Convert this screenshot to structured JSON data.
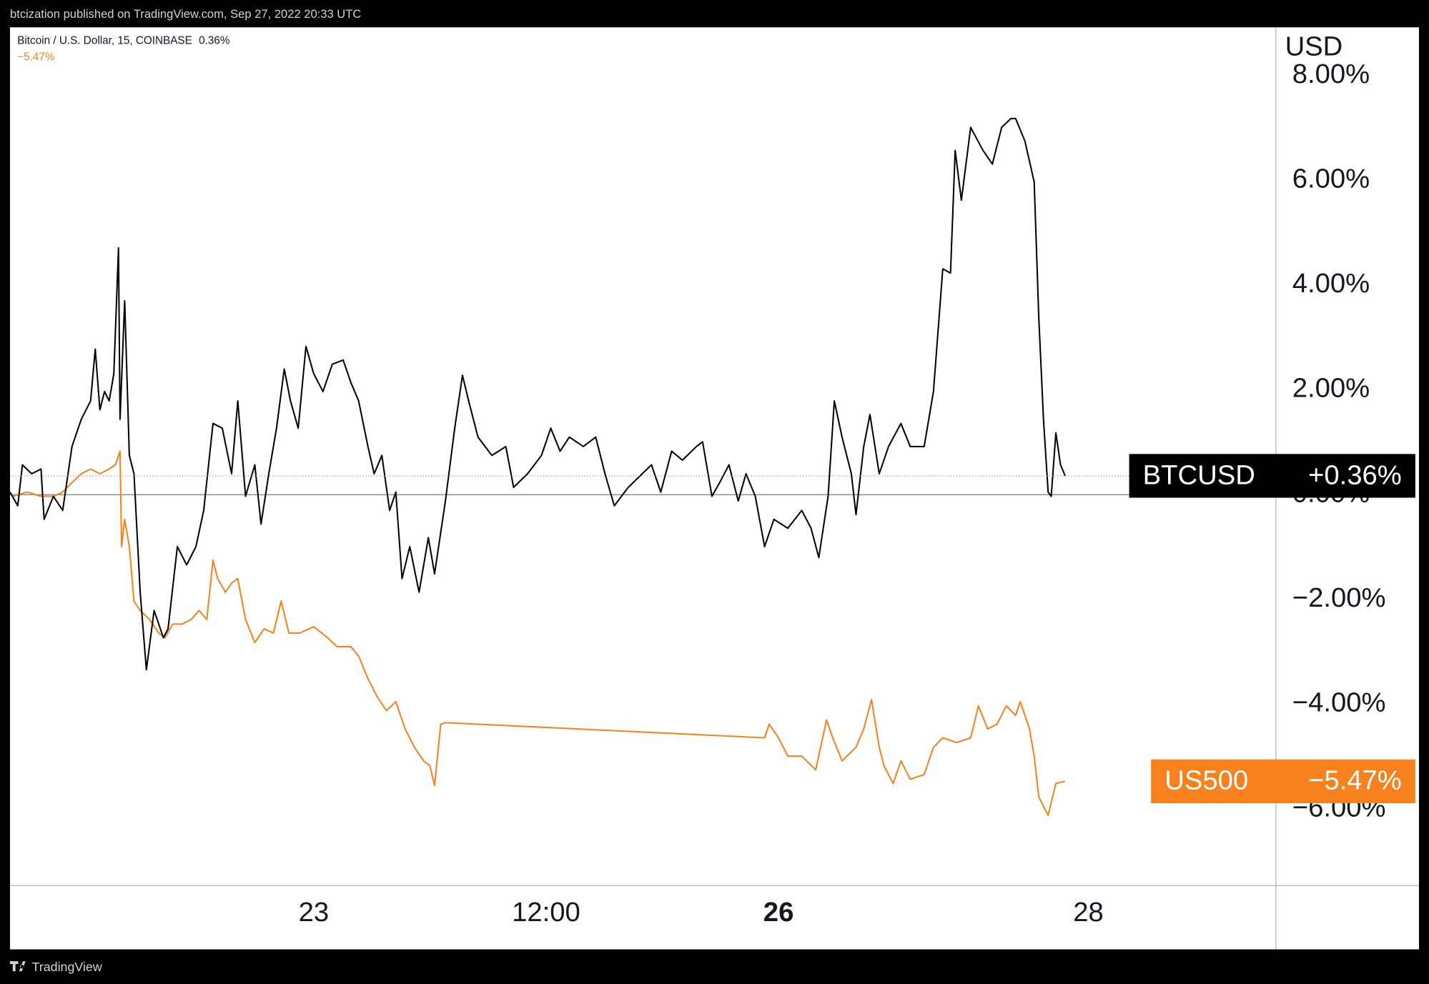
{
  "header": {
    "text": "btcization published on TradingView.com, Sep 27, 2022 20:33 UTC"
  },
  "footer": {
    "brand": "TradingView"
  },
  "chart_data": {
    "type": "line",
    "legend_title": "Bitcoin / U.S. Dollar, 15, COINBASE",
    "y_unit": "USD",
    "xlim": [
      21.04,
      29.21
    ],
    "xticks": [
      23,
      {
        "value": 24.5,
        "label": "12:00"
      },
      26,
      28
    ],
    "ylim": [
      -7.46,
      8.92
    ],
    "yticks": [
      {
        "value": -6,
        "label": "−6.00%"
      },
      {
        "value": -4,
        "label": "−4.00%"
      },
      {
        "value": -2,
        "label": "−2.00%"
      },
      {
        "value": 0,
        "label": "0.00%"
      },
      {
        "value": 2,
        "label": "2.00%"
      },
      {
        "value": 4,
        "label": "4.00%"
      },
      {
        "value": 6,
        "label": "6.00%"
      },
      {
        "value": 8,
        "label": "8.00%"
      }
    ],
    "baseline": 0,
    "grid": false,
    "series": [
      {
        "name": "BTCUSD",
        "color": "#000000",
        "legend_label": "0.36%",
        "last_label": "+0.36%",
        "x": [
          21.04,
          21.09,
          21.12,
          21.18,
          21.24,
          21.26,
          21.32,
          21.38,
          21.44,
          21.5,
          21.56,
          21.59,
          21.62,
          21.65,
          21.68,
          21.71,
          21.74,
          21.75,
          21.78,
          21.81,
          21.84,
          21.88,
          21.92,
          21.97,
          22.03,
          22.06,
          22.12,
          22.18,
          22.24,
          22.29,
          22.35,
          22.41,
          22.47,
          22.51,
          22.56,
          22.62,
          22.66,
          22.71,
          22.76,
          22.81,
          22.85,
          22.9,
          22.95,
          23.0,
          23.06,
          23.12,
          23.19,
          23.24,
          23.29,
          23.35,
          23.39,
          23.44,
          23.49,
          23.53,
          23.57,
          23.62,
          23.68,
          23.74,
          23.78,
          23.85,
          23.91,
          23.96,
          24.0,
          24.06,
          24.15,
          24.24,
          24.29,
          24.38,
          24.47,
          24.53,
          24.59,
          24.65,
          24.74,
          24.82,
          24.88,
          24.94,
          25.03,
          25.12,
          25.18,
          25.24,
          25.31,
          25.38,
          25.47,
          25.51,
          25.57,
          25.62,
          25.68,
          25.74,
          25.79,
          25.85,
          25.91,
          25.97,
          26.06,
          26.15,
          26.21,
          26.26,
          26.32,
          26.36,
          26.41,
          26.47,
          26.5,
          26.55,
          26.59,
          26.65,
          26.71,
          26.79,
          26.85,
          26.94,
          27.0,
          27.06,
          27.11,
          27.14,
          27.18,
          27.24,
          27.32,
          27.38,
          27.44,
          27.5,
          27.53,
          27.59,
          27.65,
          27.68,
          27.71,
          27.74,
          27.76,
          27.79,
          27.82,
          27.85
        ],
        "values": [
          0.05,
          -0.21,
          0.57,
          0.4,
          0.49,
          -0.47,
          -0.03,
          -0.3,
          0.92,
          1.44,
          1.79,
          2.78,
          1.62,
          1.97,
          1.79,
          2.31,
          4.71,
          1.44,
          3.7,
          0.75,
          0.4,
          -1.86,
          -3.34,
          -2.21,
          -2.73,
          -2.56,
          -0.99,
          -1.34,
          -0.99,
          -0.3,
          1.36,
          1.27,
          0.4,
          1.79,
          -0.03,
          0.57,
          -0.56,
          0.4,
          1.27,
          2.4,
          1.79,
          1.27,
          2.83,
          2.31,
          1.97,
          2.49,
          2.57,
          2.14,
          1.79,
          0.92,
          0.4,
          0.75,
          -0.3,
          0.05,
          -1.6,
          -0.99,
          -1.86,
          -0.82,
          -1.51,
          -0.12,
          1.27,
          2.28,
          1.79,
          1.1,
          0.75,
          0.92,
          0.14,
          0.4,
          0.75,
          1.27,
          0.83,
          1.1,
          0.92,
          1.1,
          0.4,
          -0.21,
          0.14,
          0.4,
          0.57,
          0.05,
          0.83,
          0.66,
          0.92,
          1.01,
          -0.03,
          0.23,
          0.57,
          -0.12,
          0.4,
          -0.03,
          -0.99,
          -0.47,
          -0.64,
          -0.3,
          -0.64,
          -1.2,
          -0.03,
          1.79,
          1.1,
          0.4,
          -0.38,
          0.92,
          1.53,
          0.4,
          0.92,
          1.36,
          0.92,
          0.92,
          1.97,
          4.31,
          4.23,
          6.57,
          5.62,
          7.01,
          6.57,
          6.31,
          7.01,
          7.18,
          7.18,
          6.75,
          5.97,
          3.36,
          1.44,
          0.05,
          -0.03,
          1.18,
          0.57,
          0.36
        ]
      },
      {
        "name": "US500",
        "color": "#f7811d",
        "legend_label": "−5.47%",
        "last_label": "−5.47%",
        "x": [
          21.06,
          21.15,
          21.24,
          21.32,
          21.38,
          21.44,
          21.5,
          21.56,
          21.62,
          21.68,
          21.72,
          21.75,
          21.76,
          21.78,
          21.81,
          21.84,
          21.88,
          21.94,
          22.0,
          22.04,
          22.09,
          22.15,
          22.21,
          22.26,
          22.31,
          22.35,
          22.38,
          22.43,
          22.47,
          22.51,
          22.56,
          22.62,
          22.68,
          22.74,
          22.79,
          22.84,
          22.91,
          23.0,
          23.09,
          23.15,
          23.24,
          23.29,
          23.35,
          23.41,
          23.47,
          23.53,
          23.59,
          23.65,
          23.71,
          23.75,
          23.78,
          23.82,
          23.85,
          25.91,
          25.94,
          26.0,
          26.06,
          26.15,
          26.24,
          26.31,
          26.35,
          26.41,
          26.5,
          26.55,
          26.6,
          26.65,
          26.68,
          26.74,
          26.79,
          26.85,
          26.94,
          27.0,
          27.06,
          27.15,
          27.24,
          27.29,
          27.35,
          27.41,
          27.47,
          27.53,
          27.56,
          27.62,
          27.65,
          27.68,
          27.74,
          27.79,
          27.85
        ],
        "values": [
          -0.03,
          0.05,
          -0.03,
          -0.03,
          0.05,
          0.23,
          0.4,
          0.49,
          0.4,
          0.49,
          0.57,
          0.83,
          -0.99,
          -0.47,
          -0.99,
          -2.03,
          -2.21,
          -2.38,
          -2.64,
          -2.73,
          -2.47,
          -2.47,
          -2.38,
          -2.21,
          -2.38,
          -1.25,
          -1.6,
          -1.86,
          -1.69,
          -1.6,
          -2.38,
          -2.82,
          -2.56,
          -2.64,
          -2.03,
          -2.64,
          -2.64,
          -2.52,
          -2.73,
          -2.9,
          -2.9,
          -3.08,
          -3.51,
          -3.86,
          -4.12,
          -3.95,
          -4.47,
          -4.82,
          -5.08,
          -5.17,
          -5.55,
          -4.38,
          -4.35,
          -4.64,
          -4.38,
          -4.64,
          -4.99,
          -4.99,
          -5.25,
          -4.3,
          -4.64,
          -5.08,
          -4.82,
          -4.47,
          -3.91,
          -4.82,
          -5.17,
          -5.51,
          -5.08,
          -5.43,
          -5.34,
          -4.82,
          -4.64,
          -4.73,
          -4.64,
          -4.03,
          -4.47,
          -4.38,
          -4.03,
          -4.21,
          -3.95,
          -4.47,
          -4.99,
          -5.77,
          -6.12,
          -5.51,
          -5.47
        ]
      }
    ]
  }
}
